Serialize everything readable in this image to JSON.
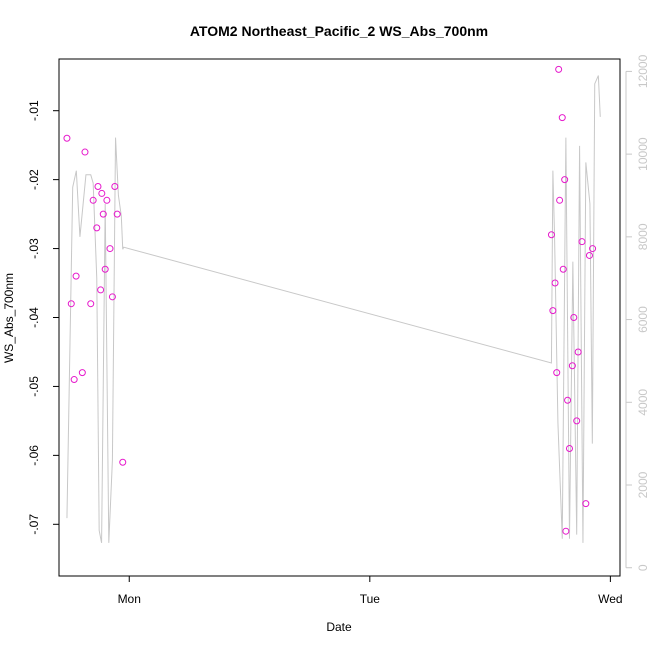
{
  "chart_data": {
    "type": "scatter",
    "title": "ATOM2 Northeast_Pacific_2 WS_Abs_700nm",
    "xlabel": "Date",
    "ylabel": "WS_Abs_700nm",
    "x_ticks": [
      {
        "x": 0,
        "label": "Mon"
      },
      {
        "x": 1,
        "label": "Tue"
      },
      {
        "x": 2,
        "label": "Wed"
      }
    ],
    "xlim": [
      -0.292,
      2.04
    ],
    "y_ticks": [
      -0.07,
      -0.06,
      -0.05,
      -0.04,
      -0.03,
      -0.02,
      -0.01
    ],
    "ylim": [
      -0.0775,
      -0.0025
    ],
    "y2_ticks": [
      0,
      2000,
      4000,
      6000,
      8000,
      10000,
      12000
    ],
    "y2lim": [
      -200,
      12300
    ],
    "colors": {
      "points": "#e619cc",
      "line": "#c8c8c8",
      "frame": "#000000",
      "secondary_axis": "#c8c8c8"
    },
    "series": [
      {
        "kind": "points",
        "axis": "left",
        "x": [
          -0.259,
          -0.241,
          -0.229,
          -0.221,
          -0.195,
          -0.184,
          -0.16,
          -0.15,
          -0.135,
          -0.13,
          -0.119,
          -0.114,
          -0.108,
          -0.1,
          -0.093,
          -0.08,
          -0.07,
          -0.06,
          -0.05,
          -0.027,
          1.755,
          1.761,
          1.77,
          1.777,
          1.785,
          1.789,
          1.8,
          1.804,
          1.81,
          1.815,
          1.822,
          1.83,
          1.842,
          1.848,
          1.86,
          1.866,
          1.882,
          1.898,
          1.913,
          1.926
        ],
        "y": [
          -0.014,
          -0.038,
          -0.049,
          -0.034,
          -0.048,
          -0.016,
          -0.038,
          -0.023,
          -0.027,
          -0.021,
          -0.036,
          -0.022,
          -0.025,
          -0.033,
          -0.023,
          -0.03,
          -0.037,
          -0.021,
          -0.025,
          -0.061,
          -0.028,
          -0.039,
          -0.035,
          -0.048,
          -0.004,
          -0.023,
          -0.011,
          -0.033,
          -0.02,
          -0.071,
          -0.052,
          -0.059,
          -0.047,
          -0.04,
          -0.055,
          -0.045,
          -0.029,
          -0.067,
          -0.031,
          -0.03
        ]
      },
      {
        "kind": "line",
        "axis": "right",
        "x": [
          -0.259,
          -0.235,
          -0.22,
          -0.205,
          -0.18,
          -0.16,
          -0.15,
          -0.135,
          -0.125,
          -0.115,
          -0.1,
          -0.085,
          -0.07,
          -0.057,
          -0.045,
          -0.033,
          -0.027,
          -0.023,
          1.755,
          1.761,
          1.768,
          1.782,
          1.8,
          1.815,
          1.83,
          1.844,
          1.86,
          1.872,
          1.886,
          1.898,
          1.915,
          1.925,
          1.935,
          1.95,
          1.958
        ],
        "y": [
          1200,
          9200,
          9600,
          8000,
          9500,
          9500,
          9300,
          7000,
          900,
          600,
          8800,
          600,
          2600,
          10400,
          9000,
          8500,
          7700,
          7750,
          4950,
          9600,
          8000,
          3500,
          700,
          10400,
          700,
          7400,
          800,
          10200,
          600,
          9800,
          8800,
          3000,
          11700,
          11900,
          10900
        ]
      }
    ]
  }
}
